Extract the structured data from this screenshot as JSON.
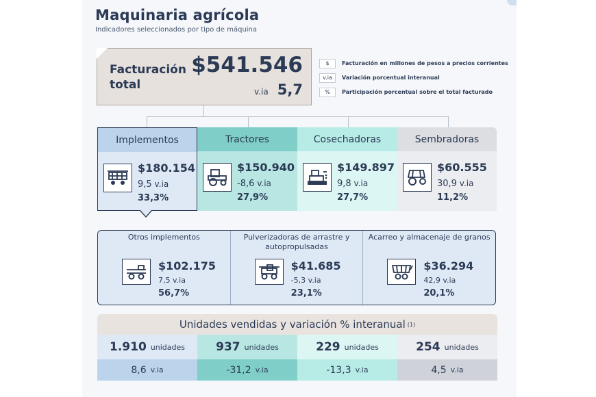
{
  "header": {
    "title": "Maquinaria agrícola",
    "subtitle": "Indicadores seleccionados por tipo de máquina"
  },
  "total": {
    "label": "Facturación total",
    "value": "$541.546",
    "via_label": "v.ia",
    "via_value": "5,7"
  },
  "legend": [
    {
      "key": "$",
      "text": "Facturación en millones de pesos a precios corrientes"
    },
    {
      "key": "v.ia",
      "text": "Variación porcentual interanual"
    },
    {
      "key": "%",
      "text": "Participación porcentual sobre el total facturado"
    }
  ],
  "categories": [
    {
      "name": "Implementos",
      "value": "$180.154",
      "via": "9,5",
      "via_label": "v.ia",
      "pct": "33,3%",
      "icon": "implement-icon"
    },
    {
      "name": "Tractores",
      "value": "$150.940",
      "via": "-8,6",
      "via_label": "v.ia",
      "pct": "27,9%",
      "icon": "tractor-icon"
    },
    {
      "name": "Cosechadoras",
      "value": "$149.897",
      "via": "9,8",
      "via_label": "v.ia",
      "pct": "27,7%",
      "icon": "harvester-icon"
    },
    {
      "name": "Sembradoras",
      "value": "$60.555",
      "via": "30,9",
      "via_label": "v.ia",
      "pct": "11,2%",
      "icon": "seeder-icon"
    }
  ],
  "subcategories": [
    {
      "name": "Otros implementos",
      "value": "$102.175",
      "via": "7,5 v.ia",
      "pct": "56,7%",
      "icon": "trailer-implement-icon"
    },
    {
      "name": "Pulverizadoras de arrastre y autopropulsadas",
      "value": "$41.685",
      "via": "-5,3 v.ia",
      "pct": "23,1%",
      "icon": "sprayer-icon"
    },
    {
      "name": "Acarreo y almacenaje de granos",
      "value": "$36.294",
      "via": "42,9 v.ia",
      "pct": "20,1%",
      "icon": "grain-cart-icon"
    }
  ],
  "units": {
    "title": "Unidades vendidas y variación % interanual",
    "note": "(1)",
    "unit_label": "unidades",
    "via_label": "v.ia",
    "items": [
      {
        "units": "1.910",
        "via": "8,6"
      },
      {
        "units": "937",
        "via": "-31,2"
      },
      {
        "units": "229",
        "via": "-13,3"
      },
      {
        "units": "254",
        "via": "4,5"
      }
    ]
  },
  "colors": {
    "text": "#2b3a55",
    "implementos": "#bcd3ec",
    "tractores": "#7fcfc8",
    "cosechadoras": "#b7ece6",
    "sembradoras": "#dcdee2",
    "total_box": "#e6e1dc"
  }
}
